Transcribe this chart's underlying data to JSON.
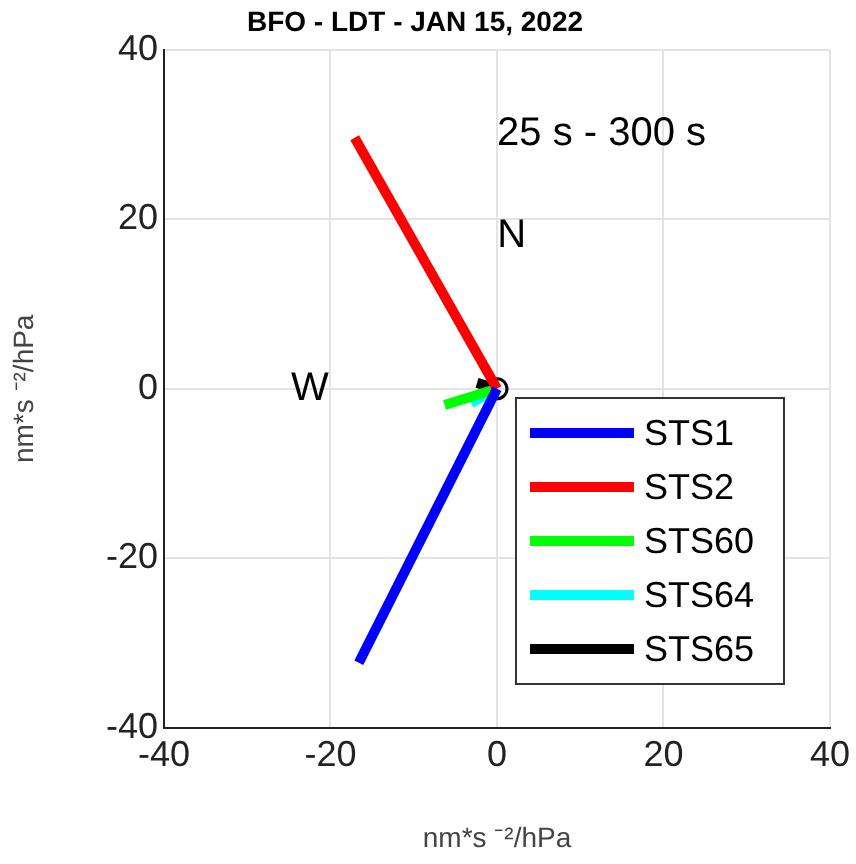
{
  "chart_data": {
    "type": "line",
    "title": "BFO - LDT - JAN 15, 2022",
    "xlabel": "nm*s ⁻²/hPa",
    "ylabel": "nm*s ⁻²/hPa",
    "xlim": [
      -40,
      40
    ],
    "xticks": [
      -40,
      -20,
      0,
      20,
      40
    ],
    "ylim": [
      -40,
      40
    ],
    "yticks": [
      -40,
      -20,
      0,
      20,
      40
    ],
    "grid": true,
    "legend": "bottom right",
    "line_style": "solid",
    "annotations": [
      "25 s - 300 s",
      "N",
      "W"
    ],
    "series": [
      {
        "name": "STS1",
        "color": "#0000ff",
        "x": [
          0,
          -16.6
        ],
        "values": [
          0,
          -32.3
        ]
      },
      {
        "name": "STS2",
        "color": "#ff0000",
        "x": [
          0,
          -17.1
        ],
        "values": [
          0,
          29.6
        ]
      },
      {
        "name": "STS60",
        "color": "#00ff00",
        "x": [
          0,
          -6.3
        ],
        "values": [
          0,
          -1.9
        ]
      },
      {
        "name": "STS64",
        "color": "#00ffff",
        "x": [
          0,
          -3.1
        ],
        "values": [
          0,
          -1.7
        ]
      },
      {
        "name": "STS65",
        "color": "#000000",
        "x": [
          0,
          -2.4
        ],
        "values": [
          0,
          0.7
        ]
      },
      {
        "type": "scatter",
        "marker": "circle",
        "color": "#000000",
        "x": [
          0
        ],
        "values": [
          0
        ]
      }
    ]
  }
}
